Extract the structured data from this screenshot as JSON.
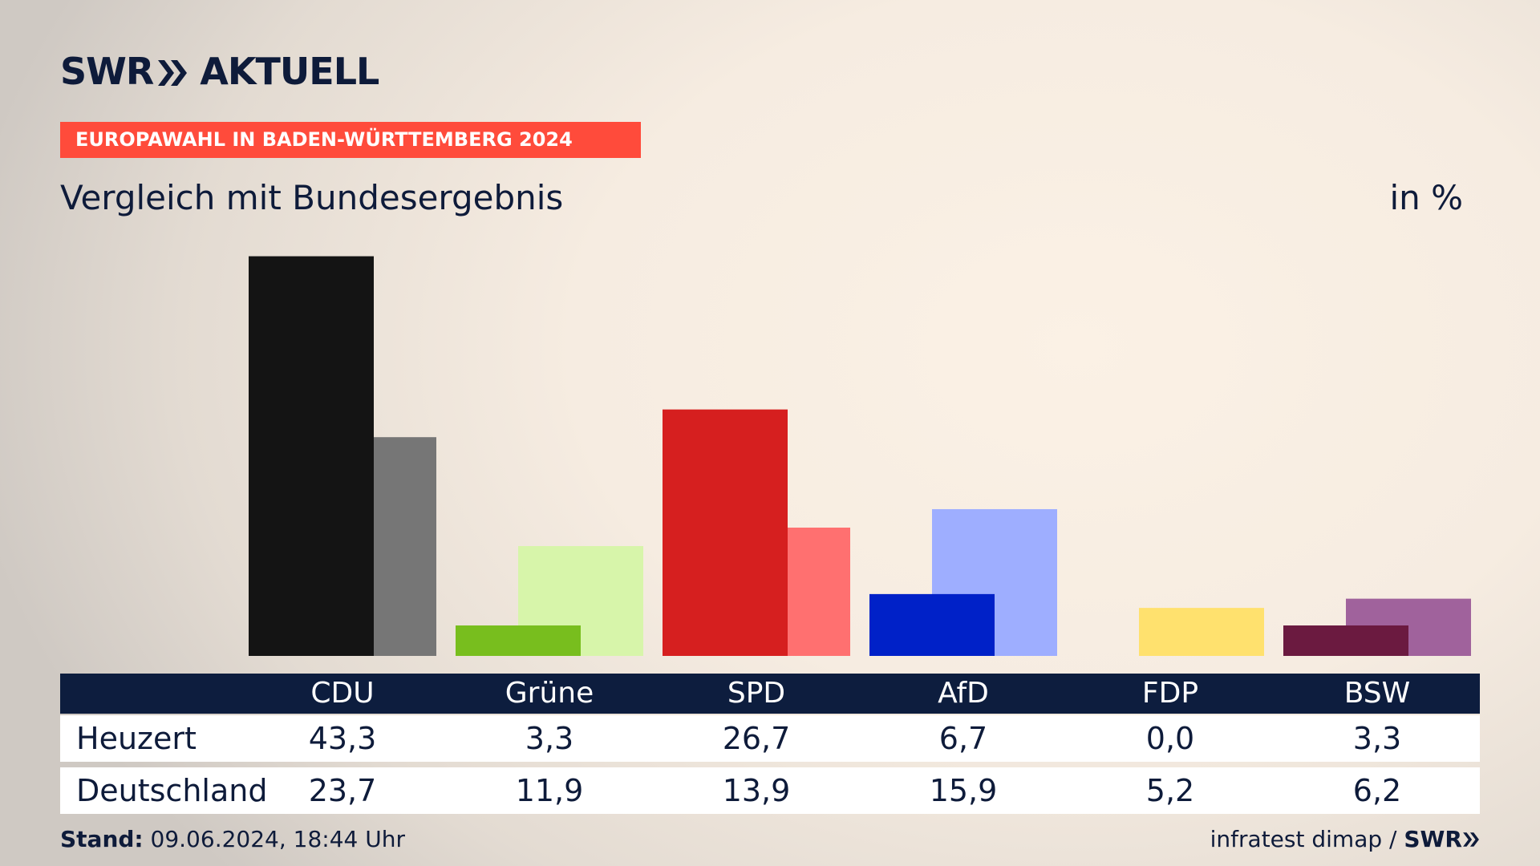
{
  "header": {
    "logo_text_left": "SWR",
    "logo_text_right": "AKTUELL",
    "banner": "EUROPAWAHL IN BADEN-WÜRTTEMBERG 2024",
    "subtitle": "Vergleich mit Bundesergebnis",
    "unit": "in %"
  },
  "table": {
    "row_labels": [
      "Heuzert",
      "Deutschland"
    ]
  },
  "footer": {
    "stand_label": "Stand:",
    "stand_value": "09.06.2024, 18:44 Uhr",
    "source": "infratest dimap /",
    "source_logo": "SWR"
  },
  "chart_data": {
    "type": "bar",
    "categories": [
      "CDU",
      "Grüne",
      "SPD",
      "AfD",
      "FDP",
      "BSW"
    ],
    "series": [
      {
        "name": "Heuzert",
        "values": [
          43.3,
          3.3,
          26.7,
          6.7,
          0.0,
          3.3
        ],
        "colors": [
          "#141414",
          "#78be1e",
          "#d61f1f",
          "#0021c8",
          "#ffe16e",
          "#6b1a40"
        ]
      },
      {
        "name": "Deutschland",
        "values": [
          23.7,
          11.9,
          13.9,
          15.9,
          5.2,
          6.2
        ],
        "colors": [
          "#767676",
          "#d7f5aa",
          "#ff7070",
          "#9eaeff",
          "#ffe16e",
          "#a0629c"
        ]
      }
    ],
    "value_labels": {
      "Heuzert": [
        "43,3",
        "3,3",
        "26,7",
        "6,7",
        "0,0",
        "3,3"
      ],
      "Deutschland": [
        "23,7",
        "11,9",
        "13,9",
        "15,9",
        "5,2",
        "6,2"
      ]
    },
    "ylim": [
      0,
      45
    ],
    "grid": false,
    "legend": "table-below"
  }
}
